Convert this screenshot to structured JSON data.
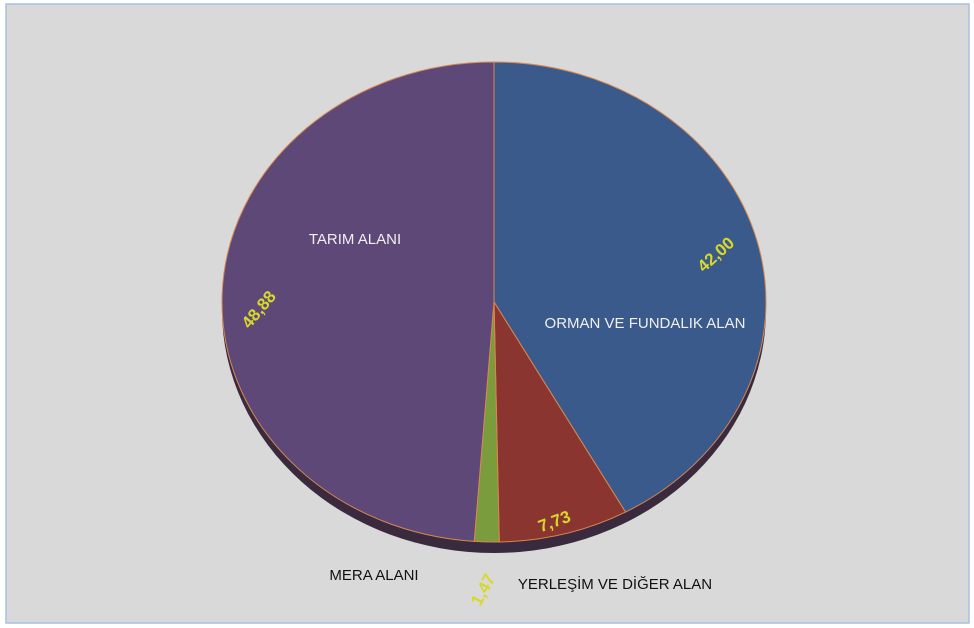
{
  "chart_data": {
    "type": "pie",
    "categories": [
      "ORMAN VE FUNDALIK ALAN",
      "YERLEŞİM VE DİĞER ALAN",
      "MERA ALANI",
      "TARIM ALANI"
    ],
    "values": [
      42.0,
      7.73,
      1.47,
      48.88
    ],
    "value_labels": [
      "42,00",
      "7,73",
      "1,47",
      "48,88"
    ],
    "colors": [
      "#3a5a8c",
      "#8b3531",
      "#7b9c3c",
      "#5e4878"
    ]
  }
}
